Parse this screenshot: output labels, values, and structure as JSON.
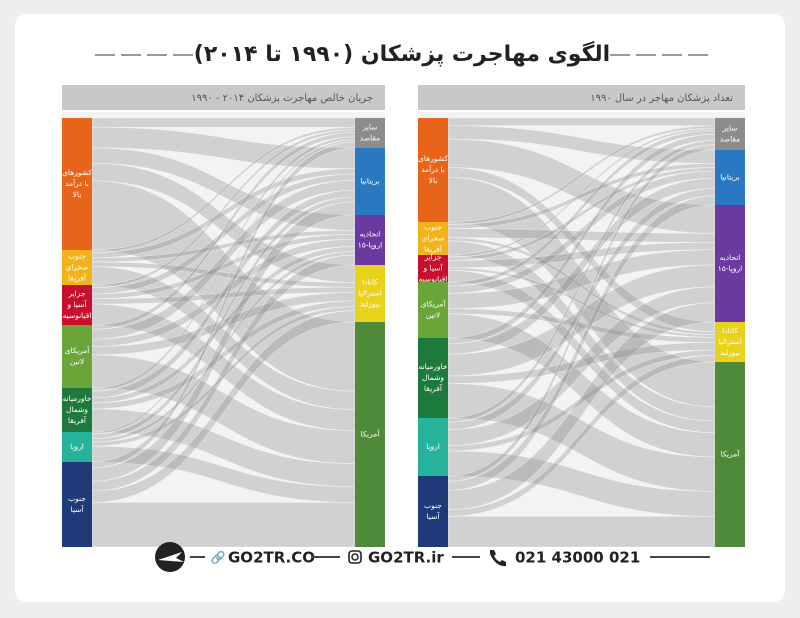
{
  "title": "الگوی مهاجرت پزشکان (۱۹۹۰ تا ۲۰۱۴)",
  "panels": [
    {
      "title": "جریان خالص مهاجرت پزشکان ۲۰۱۴ - ۱۹۹۰",
      "sources": [
        [
          "کشورهای",
          "با درآمد",
          "بالا"
        ],
        [
          "جنوب",
          "صحرای",
          "آفریقا"
        ],
        [
          "جزایر",
          "آسیا و",
          "اقیانوسیه"
        ],
        [
          "آمریکای",
          "لاتین"
        ],
        [
          "خاورمیانه",
          "وشمال",
          "آفریقا"
        ],
        [
          "اروپا"
        ],
        [
          "جنوب",
          "آسیا"
        ]
      ],
      "targets": [
        [
          "سایر",
          "مقاصد"
        ],
        [
          "بریتانیا"
        ],
        [
          "اتحادیه",
          "اروپا-۱۵"
        ],
        [
          "کانادا",
          "استرالیا",
          "نیوزلند"
        ],
        [
          "آمریکا"
        ]
      ]
    },
    {
      "title": "تعداد پزشکان مهاجر در سال ۱۹۹۰",
      "sources": [
        [
          "کشورهای",
          "با درآمد",
          "بالا"
        ],
        [
          "جنوب",
          "صحرای",
          "آفریقا"
        ],
        [
          "جزایر",
          "آسیا و",
          "اقیانوسیه"
        ],
        [
          "آمریکای",
          "لاتین"
        ],
        [
          "خاورمیانه",
          "وشمال",
          "آفریقا"
        ],
        [
          "اروپا"
        ],
        [
          "جنوب",
          "آسیا"
        ]
      ],
      "targets": [
        [
          "سایر",
          "مقاصد"
        ],
        [
          "بریتانیا"
        ],
        [
          "اتحادیه",
          "اروپا-۱۵"
        ],
        [
          "کانادا",
          "استرالیا",
          "نیوزلند"
        ],
        [
          "آمریکا"
        ]
      ]
    }
  ],
  "footer": {
    "website": "GO2TR.CO",
    "instagram": "GO2TR.ir",
    "phone": "021 43000 021"
  }
}
